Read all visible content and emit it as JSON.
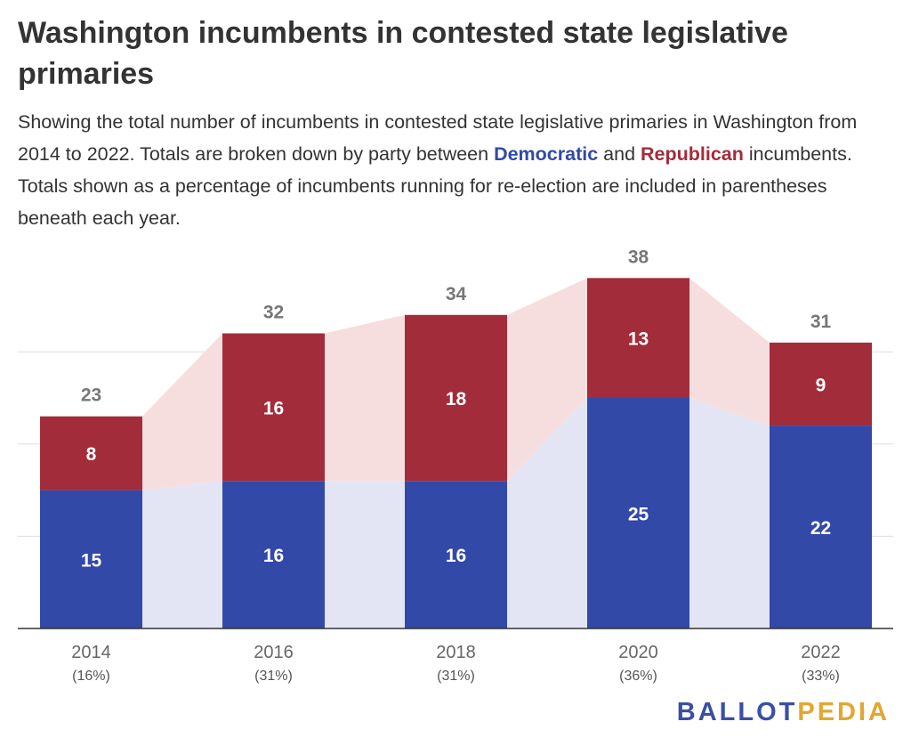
{
  "title": "Washington incumbents in contested state legislative primaries",
  "subtitle": {
    "part1": "Showing the total number of incumbents in contested state legislative primaries in Washington from 2014 to 2022. Totals are broken down by party between ",
    "dem": "Democratic",
    "part2": " and ",
    "rep": "Republican",
    "part3": " incumbents. Totals shown as a percentage of incumbents running for re-election are included in parentheses beneath each year."
  },
  "logo": {
    "ballot": "BALLOT",
    "pedia": "PEDIA"
  },
  "colors": {
    "democratic": "#3249a8",
    "republican": "#a32c3b",
    "dem_area": "#e3e5f5",
    "rep_area": "#f7dede",
    "axis": "#333333",
    "grid": "#dddddd"
  },
  "chart_data": {
    "type": "bar",
    "stacked": true,
    "categories": [
      "2014",
      "2016",
      "2018",
      "2020",
      "2022"
    ],
    "category_sublabels": [
      "(16%)",
      "(31%)",
      "(31%)",
      "(36%)",
      "(33%)"
    ],
    "series": [
      {
        "name": "Democratic",
        "values": [
          15,
          16,
          16,
          25,
          22
        ]
      },
      {
        "name": "Republican",
        "values": [
          8,
          16,
          18,
          13,
          9
        ]
      }
    ],
    "totals": [
      23,
      32,
      34,
      38,
      31
    ],
    "ylim": [
      0,
      40
    ],
    "grid": true,
    "legend": "none"
  }
}
